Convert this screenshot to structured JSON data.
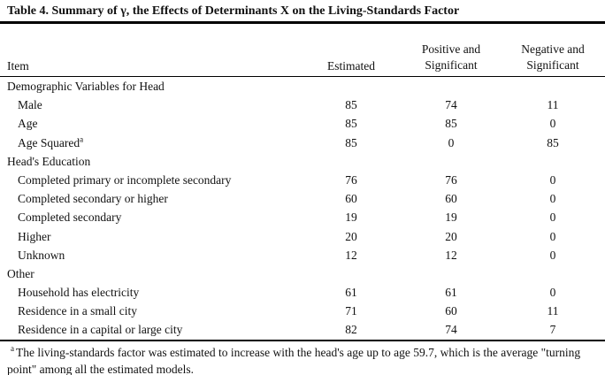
{
  "title": "Table 4. Summary of γ, the Effects of Determinants X on the Living-Standards Factor",
  "table": {
    "columns": {
      "item": "Item",
      "estimated": "Estimated",
      "positive_line1": "Positive and",
      "positive_line2": "Significant",
      "negative_line1": "Negative and",
      "negative_line2": "Significant"
    },
    "rows": [
      {
        "label": "Demographic Variables for Head",
        "type": "section"
      },
      {
        "label": "Male",
        "type": "data",
        "estimated": "85",
        "positive": "74",
        "negative": "11"
      },
      {
        "label": "Age",
        "type": "data",
        "estimated": "85",
        "positive": "85",
        "negative": "0"
      },
      {
        "label": "Age Squared",
        "sup": "a",
        "type": "data",
        "estimated": "85",
        "positive": "0",
        "negative": "85"
      },
      {
        "label": "Head's Education",
        "type": "section"
      },
      {
        "label": "Completed primary or incomplete secondary",
        "type": "data",
        "estimated": "76",
        "positive": "76",
        "negative": "0"
      },
      {
        "label": "Completed secondary or higher",
        "type": "data",
        "estimated": "60",
        "positive": "60",
        "negative": "0"
      },
      {
        "label": "Completed secondary",
        "type": "data",
        "estimated": "19",
        "positive": "19",
        "negative": "0"
      },
      {
        "label": "Higher",
        "type": "data",
        "estimated": "20",
        "positive": "20",
        "negative": "0"
      },
      {
        "label": "Unknown",
        "type": "data",
        "estimated": "12",
        "positive": "12",
        "negative": "0"
      },
      {
        "label": "Other",
        "type": "section"
      },
      {
        "label": "Household has electricity",
        "type": "data",
        "estimated": "61",
        "positive": "61",
        "negative": "0"
      },
      {
        "label": "Residence in a small city",
        "type": "data",
        "estimated": "71",
        "positive": "60",
        "negative": "11"
      },
      {
        "label": "Residence in a capital or large city",
        "type": "data",
        "estimated": "82",
        "positive": "74",
        "negative": "7"
      }
    ]
  },
  "footnote": {
    "marker": "a",
    "text": "The living-standards factor was estimated to increase with the head's age up to age 59.7, which is the average \"turning point\" among all the estimated models."
  }
}
